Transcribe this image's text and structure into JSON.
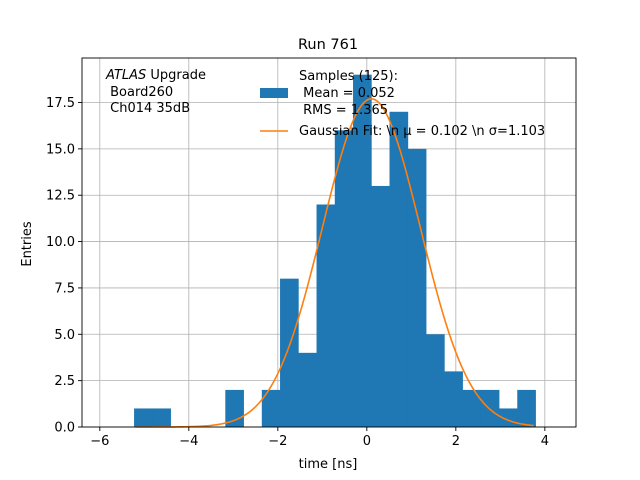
{
  "chart_data": {
    "type": "bar",
    "title": "Run 761",
    "xlabel": "time [ns]",
    "ylabel": "Entries",
    "xlim": [
      -6.4,
      4.7
    ],
    "ylim": [
      0,
      19.9
    ],
    "grid": true,
    "xticks": [
      -6,
      -4,
      -2,
      0,
      2,
      4
    ],
    "xtick_labels": [
      "−6",
      "−4",
      "−2",
      "0",
      "2",
      "4"
    ],
    "yticks": [
      0,
      2.5,
      5,
      7.5,
      10,
      12.5,
      15,
      17.5
    ],
    "ytick_labels": [
      "0.0",
      "2.5",
      "5.0",
      "7.5",
      "10.0",
      "12.5",
      "15.0",
      "17.5"
    ],
    "bin_edges": [
      -5.23,
      -4.82,
      -4.41,
      -4.0,
      -3.59,
      -3.18,
      -2.77,
      -2.36,
      -1.95,
      -1.54,
      -1.13,
      -0.72,
      -0.31,
      0.1,
      0.51,
      0.92,
      1.33,
      1.74,
      2.15,
      2.56,
      2.97,
      3.38,
      3.79
    ],
    "bin_counts": [
      1,
      1,
      0,
      0,
      0,
      2,
      0,
      2,
      8,
      4,
      12,
      16,
      19,
      13,
      17,
      15,
      5,
      3,
      2,
      2,
      1,
      2
    ],
    "fit": {
      "mu": 0.102,
      "sigma": 1.103,
      "amplitude": 17.7,
      "x_range": [
        -5.2,
        3.75
      ]
    },
    "colors": {
      "histogram": "#1f77b4",
      "fit": "#ff7f0e",
      "grid": "#b0b0b0"
    },
    "annotation": [
      "ATLAS",
      " Upgrade",
      " Board260",
      " Ch014 35dB"
    ],
    "legend": {
      "placement": "top-right",
      "hist_label_lines": [
        "Samples (125):",
        " Mean = 0.052",
        " RMS = 1.365"
      ],
      "fit_label": "Gaussian Fit: \\n μ = 0.102 \\n σ=1.103"
    }
  }
}
